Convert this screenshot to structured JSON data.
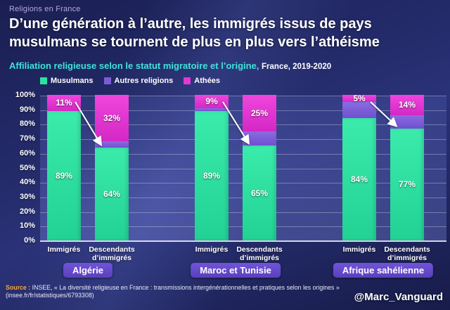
{
  "header": {
    "kicker": "Religions en France",
    "title_line1": "D’une génération à l’autre, les immigrés issus de pays",
    "title_line2": "musulmans se tournent de plus en plus vers l’athéisme",
    "subtitle": "Affiliation religieuse selon le statut migratoire et l’origine,",
    "subtitle_suffix": "France, 2019-2020"
  },
  "legend": [
    {
      "label": "Musulmans",
      "color": "#2be3a0"
    },
    {
      "label": "Autres religions",
      "color": "#7c5cd6"
    },
    {
      "label": "Athées",
      "color": "#e437d2"
    }
  ],
  "chart_data": {
    "type": "bar",
    "stacked": true,
    "unit": "%",
    "ylim": [
      0,
      100
    ],
    "yticks": [
      "0%",
      "10%",
      "20%",
      "30%",
      "40%",
      "50%",
      "60%",
      "70%",
      "80%",
      "90%",
      "100%"
    ],
    "grid": true,
    "series_keys": [
      "musulmans",
      "autres_religions",
      "athees"
    ],
    "colors": {
      "musulmans": "#2be3a0",
      "autres_religions": "#7c5cd6",
      "athees": "#e437d2"
    },
    "labeled_segments": [
      "musulmans",
      "athees"
    ],
    "groups": [
      {
        "label": "Algérie",
        "bars": [
          {
            "label": "Immigrés",
            "values": {
              "musulmans": 89,
              "autres_religions": 0,
              "athees": 11
            }
          },
          {
            "label": "Descendants d’immigrés",
            "values": {
              "musulmans": 64,
              "autres_religions": 4,
              "athees": 32
            }
          }
        ]
      },
      {
        "label": "Maroc et Tunisie",
        "bars": [
          {
            "label": "Immigrés",
            "values": {
              "musulmans": 89,
              "autres_religions": 2,
              "athees": 9
            }
          },
          {
            "label": "Descendants d’immigrés",
            "values": {
              "musulmans": 65,
              "autres_religions": 10,
              "athees": 25
            }
          }
        ]
      },
      {
        "label": "Afrique sahélienne",
        "bars": [
          {
            "label": "Immigrés",
            "values": {
              "musulmans": 84,
              "autres_religions": 11,
              "athees": 5
            }
          },
          {
            "label": "Descendants d’immigrés",
            "values": {
              "musulmans": 77,
              "autres_religions": 9,
              "athees": 14
            }
          }
        ]
      }
    ]
  },
  "footer": {
    "source_label": "Source :",
    "source_text": " INSEE, « La diversité religieuse en France : transmissions intergénérationnelles et pratiques selon les origines » (insee.fr/fr/statistiques/6793308)",
    "handle": "@Marc_Vanguard"
  }
}
